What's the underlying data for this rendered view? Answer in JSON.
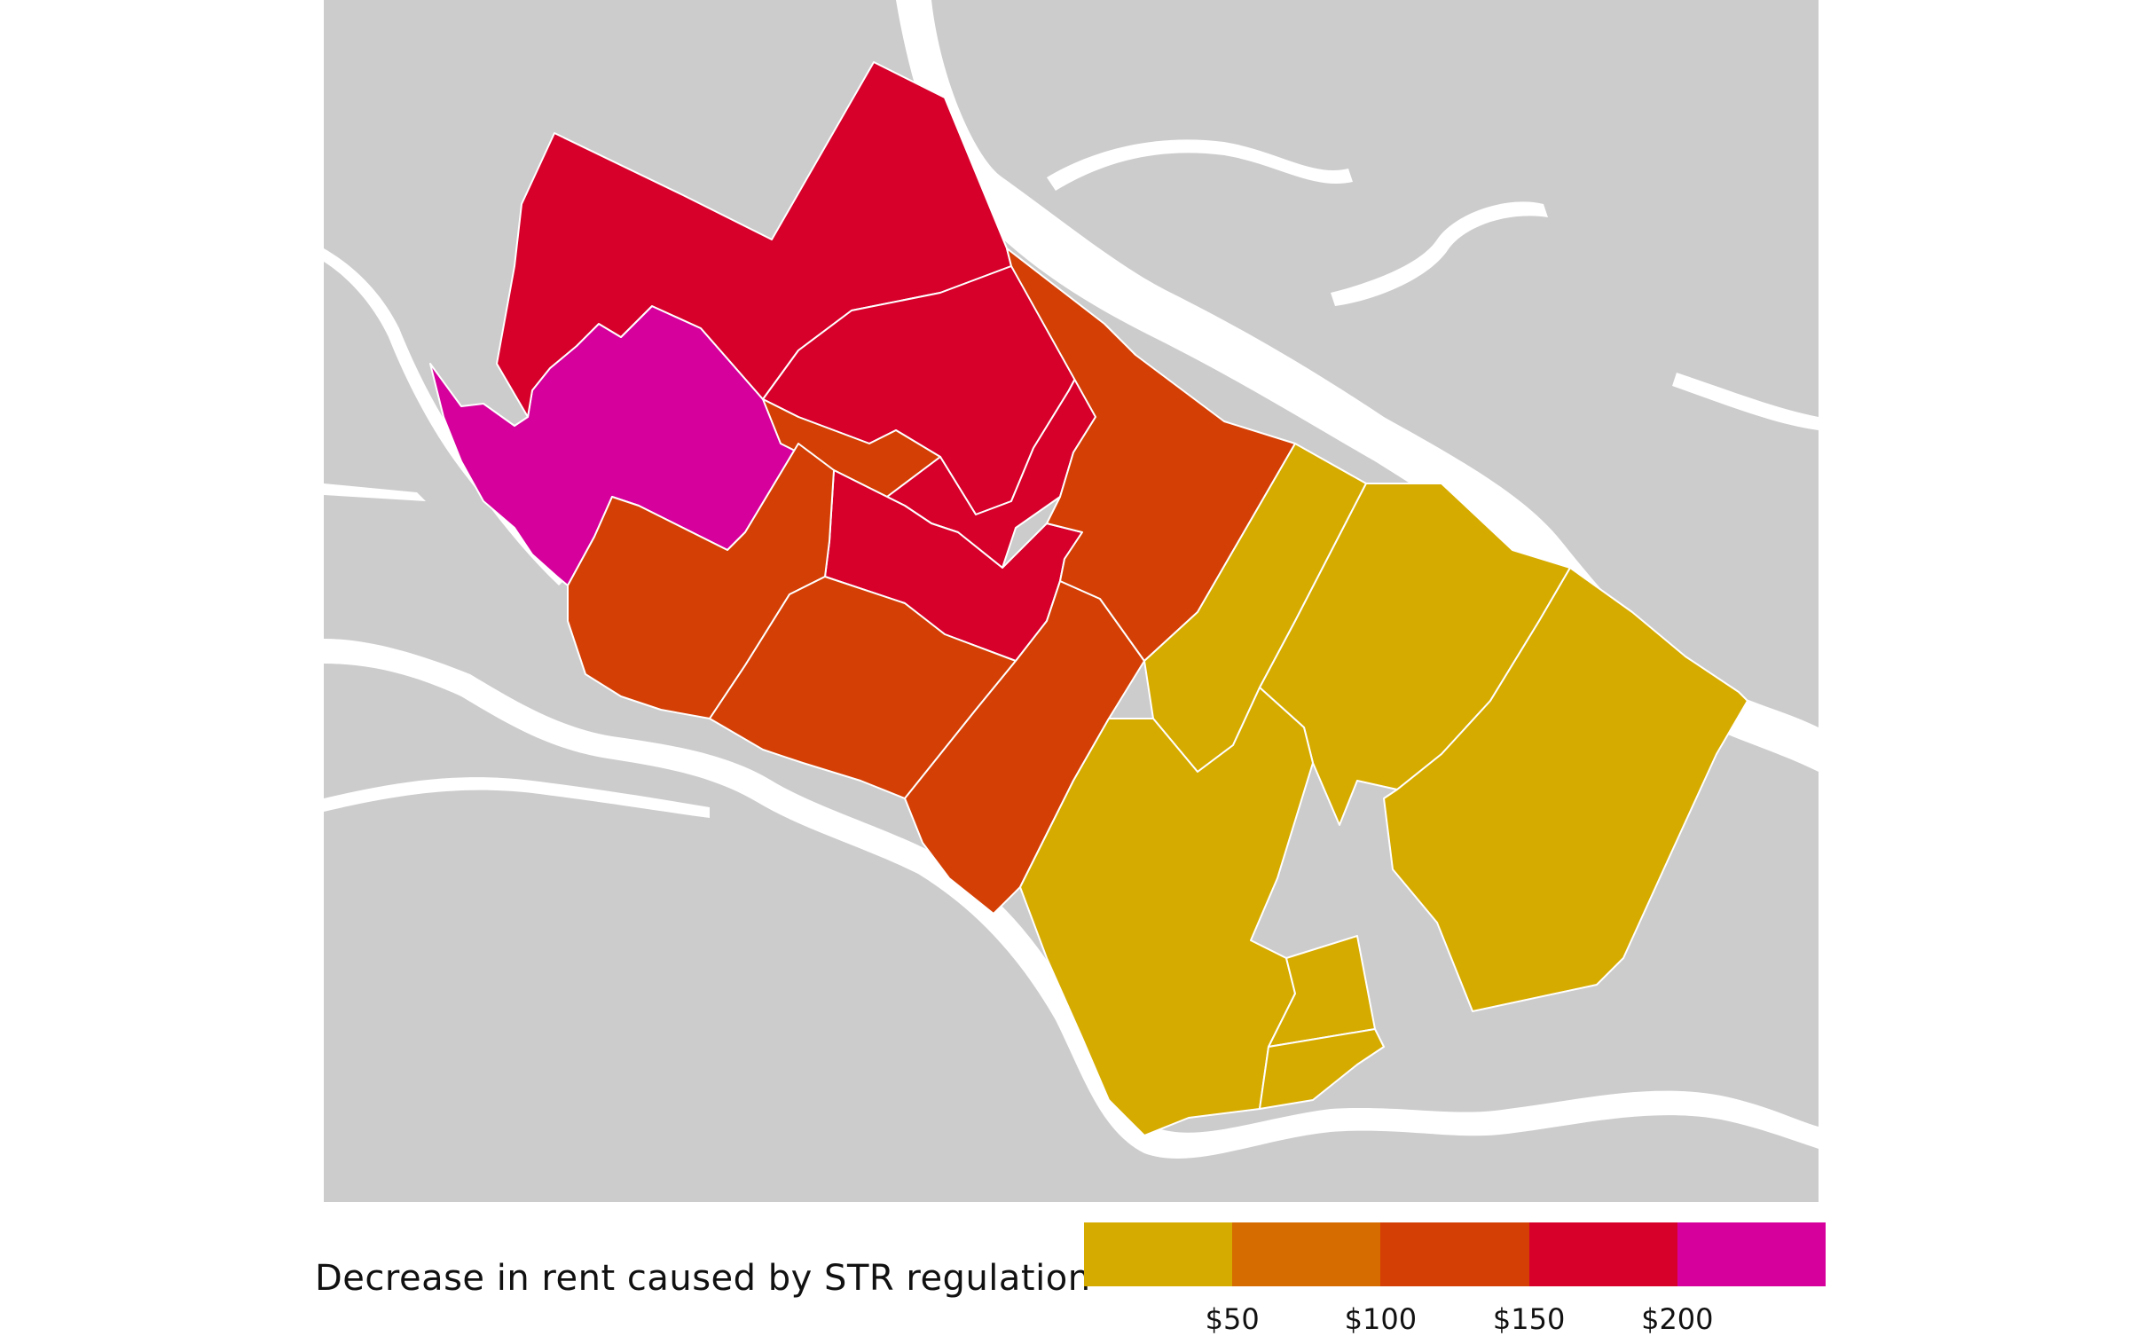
{
  "legend": {
    "title": "Decrease in rent caused by STR regulation",
    "ticks": [
      "$50",
      "$100",
      "$150",
      "$200"
    ],
    "bins": [
      {
        "label": "< $50",
        "color": "#d6ab00"
      },
      {
        "label": "$50–$100",
        "color": "#d66b00"
      },
      {
        "label": "$100–$150",
        "color": "#d43f05"
      },
      {
        "label": "$150–$200",
        "color": "#d6002a"
      },
      {
        "label": "> $200",
        "color": "#d6009c"
      }
    ]
  },
  "colors": {
    "land": "#cccccc",
    "water": "#ffffff",
    "border": "#ffffff"
  },
  "regions": [
    {
      "id": "west-end",
      "bin": 4
    },
    {
      "id": "downtown-north",
      "bin": 3
    },
    {
      "id": "downtown-central",
      "bin": 3
    },
    {
      "id": "downtown-east",
      "bin": 2
    },
    {
      "id": "central-north",
      "bin": 3
    },
    {
      "id": "central-south",
      "bin": 3
    },
    {
      "id": "west-south",
      "bin": 2
    },
    {
      "id": "south-central",
      "bin": 2
    },
    {
      "id": "south-east",
      "bin": 2
    },
    {
      "id": "east-north",
      "bin": 2
    },
    {
      "id": "east-side-north",
      "bin": 0
    },
    {
      "id": "east-side-central",
      "bin": 0
    },
    {
      "id": "far-east",
      "bin": 0
    },
    {
      "id": "south-east-lower",
      "bin": 0
    },
    {
      "id": "south-east-pocket",
      "bin": 0
    },
    {
      "id": "lakeside",
      "bin": 0
    }
  ]
}
